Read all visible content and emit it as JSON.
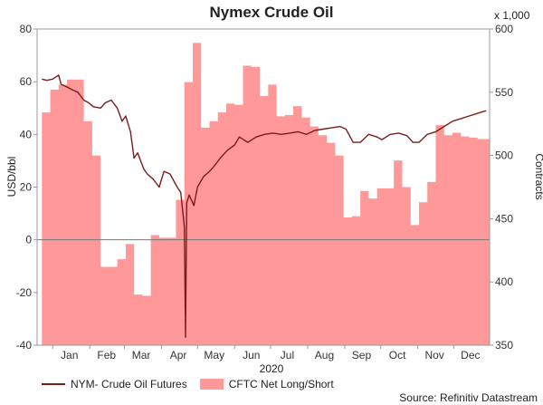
{
  "chart_data": {
    "type": "line+area",
    "title": "Nymex Crude Oil",
    "x_label": "2020",
    "y_left_label": "USD/bbl",
    "y_right_label": "Contracts",
    "y_right_units": "x 1,000",
    "source": "Source: Refinitiv Datastream",
    "y_left_range": [
      -40,
      80
    ],
    "y_right_range": [
      350,
      600
    ],
    "y_left_ticks": [
      "80",
      "60",
      "40",
      "20",
      "0",
      "-20",
      "-40"
    ],
    "y_right_ticks": [
      "600",
      "550",
      "500",
      "450",
      "400",
      "350"
    ],
    "x_ticks": [
      "Jan",
      "Feb",
      "Mar",
      "Apr",
      "May",
      "Jun",
      "Jul",
      "Aug",
      "Sep",
      "Oct",
      "Nov",
      "Dec"
    ],
    "colors": {
      "line": "#7b1c1c",
      "area": "#ff9898",
      "zero": "#777777",
      "axis": "#999999"
    },
    "series": [
      {
        "name": "NYM- Crude Oil Futures",
        "axis": "left",
        "type": "line",
        "x": [
          "2019-12-23",
          "2019-12-27",
          "2020-01-01",
          "2020-01-06",
          "2020-01-08",
          "2020-01-13",
          "2020-01-17",
          "2020-01-22",
          "2020-01-27",
          "2020-01-31",
          "2020-02-04",
          "2020-02-10",
          "2020-02-14",
          "2020-02-19",
          "2020-02-24",
          "2020-02-28",
          "2020-03-02",
          "2020-03-06",
          "2020-03-09",
          "2020-03-12",
          "2020-03-17",
          "2020-03-20",
          "2020-03-25",
          "2020-03-30",
          "2020-04-03",
          "2020-04-08",
          "2020-04-14",
          "2020-04-17",
          "2020-04-20",
          "2020-04-21",
          "2020-04-22",
          "2020-04-24",
          "2020-04-28",
          "2020-05-01",
          "2020-05-06",
          "2020-05-11",
          "2020-05-15",
          "2020-05-20",
          "2020-05-26",
          "2020-06-01",
          "2020-06-05",
          "2020-06-12",
          "2020-06-19",
          "2020-06-26",
          "2020-07-03",
          "2020-07-10",
          "2020-07-17",
          "2020-07-24",
          "2020-07-31",
          "2020-08-07",
          "2020-08-14",
          "2020-08-21",
          "2020-08-28",
          "2020-09-02",
          "2020-09-08",
          "2020-09-14",
          "2020-09-21",
          "2020-09-28",
          "2020-10-02",
          "2020-10-09",
          "2020-10-16",
          "2020-10-23",
          "2020-10-28",
          "2020-11-02",
          "2020-11-09",
          "2020-11-16",
          "2020-11-23",
          "2020-11-30",
          "2020-12-07",
          "2020-12-14",
          "2020-12-21",
          "2020-12-28"
        ],
        "values": [
          61,
          60.5,
          61,
          62.5,
          59,
          58,
          57,
          56,
          53,
          52,
          50.5,
          50,
          52,
          53,
          50,
          45,
          47,
          41,
          31,
          33,
          27,
          25,
          23,
          20,
          26,
          25,
          20,
          18,
          5,
          -37,
          14,
          17,
          13,
          20,
          24,
          26,
          28,
          31,
          34,
          36,
          39,
          37,
          39,
          40,
          40.5,
          40,
          40.5,
          41,
          40,
          41.5,
          42,
          42.5,
          43,
          42,
          37,
          37,
          40,
          39,
          38,
          40,
          40.5,
          39.5,
          37,
          37,
          40,
          41,
          43,
          45,
          46,
          47,
          48,
          49
        ]
      },
      {
        "name": "CFTC Net Long/Short",
        "axis": "right",
        "type": "area",
        "x": [
          "2019-12-23",
          "2019-12-30",
          "2020-01-06",
          "2020-01-13",
          "2020-01-20",
          "2020-01-27",
          "2020-02-03",
          "2020-02-10",
          "2020-02-17",
          "2020-02-24",
          "2020-03-02",
          "2020-03-09",
          "2020-03-16",
          "2020-03-23",
          "2020-03-30",
          "2020-04-06",
          "2020-04-13",
          "2020-04-20",
          "2020-04-27",
          "2020-05-04",
          "2020-05-11",
          "2020-05-18",
          "2020-05-25",
          "2020-06-01",
          "2020-06-08",
          "2020-06-15",
          "2020-06-22",
          "2020-06-29",
          "2020-07-06",
          "2020-07-13",
          "2020-07-20",
          "2020-07-27",
          "2020-08-03",
          "2020-08-10",
          "2020-08-17",
          "2020-08-24",
          "2020-08-31",
          "2020-09-07",
          "2020-09-14",
          "2020-09-21",
          "2020-09-28",
          "2020-10-05",
          "2020-10-12",
          "2020-10-19",
          "2020-10-26",
          "2020-11-02",
          "2020-11-09",
          "2020-11-16",
          "2020-11-23",
          "2020-11-30",
          "2020-12-07",
          "2020-12-14",
          "2020-12-21"
        ],
        "values": [
          534,
          552,
          556,
          560,
          560,
          527,
          500,
          412,
          412,
          418,
          430,
          390,
          389,
          437,
          435,
          435,
          465,
          558,
          589,
          522,
          527,
          534,
          541,
          540,
          571,
          570,
          547,
          556,
          531,
          532,
          539,
          530,
          523,
          516,
          510,
          500,
          451,
          452,
          472,
          466,
          474,
          474,
          496,
          475,
          445,
          463,
          479,
          524,
          516,
          518,
          515,
          514,
          513
        ]
      }
    ]
  }
}
